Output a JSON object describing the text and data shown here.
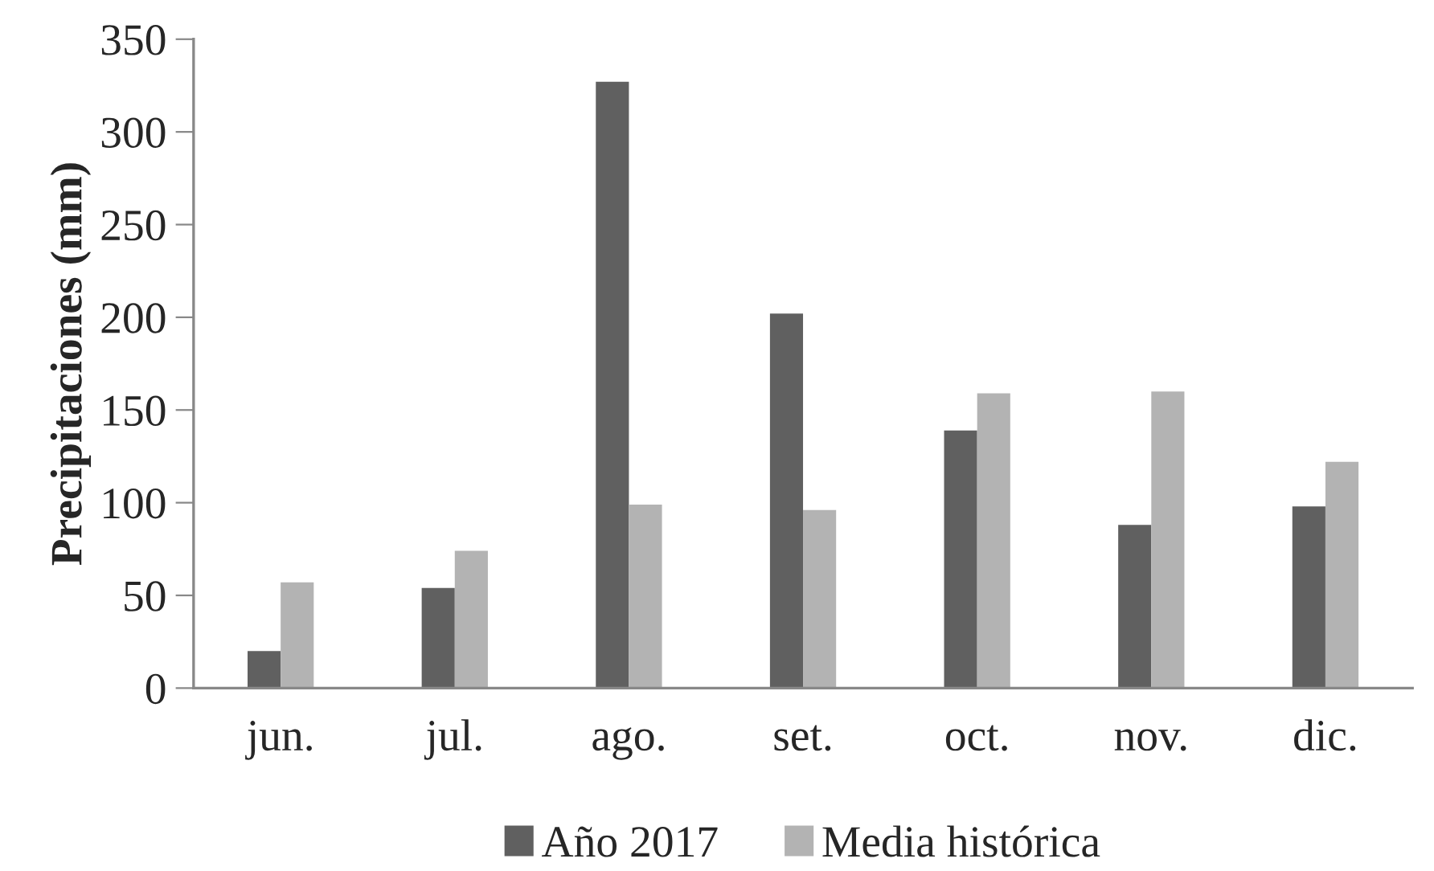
{
  "chart_data": {
    "type": "bar",
    "ylabel": "Precipitaciones (mm)",
    "categories": [
      "jun.",
      "jul.",
      "ago.",
      "set.",
      "oct.",
      "nov.",
      "dic."
    ],
    "series": [
      {
        "name": "Año 2017",
        "color": "#606060",
        "values": [
          20,
          54,
          327,
          202,
          139,
          88,
          98
        ]
      },
      {
        "name": "Media histórica",
        "color": "#b3b3b3",
        "values": [
          57,
          74,
          99,
          96,
          159,
          160,
          122
        ]
      }
    ],
    "ylim": [
      0,
      350
    ],
    "yticks": [
      0,
      50,
      100,
      150,
      200,
      250,
      300,
      350
    ],
    "grid": false,
    "legend": "bottom"
  }
}
